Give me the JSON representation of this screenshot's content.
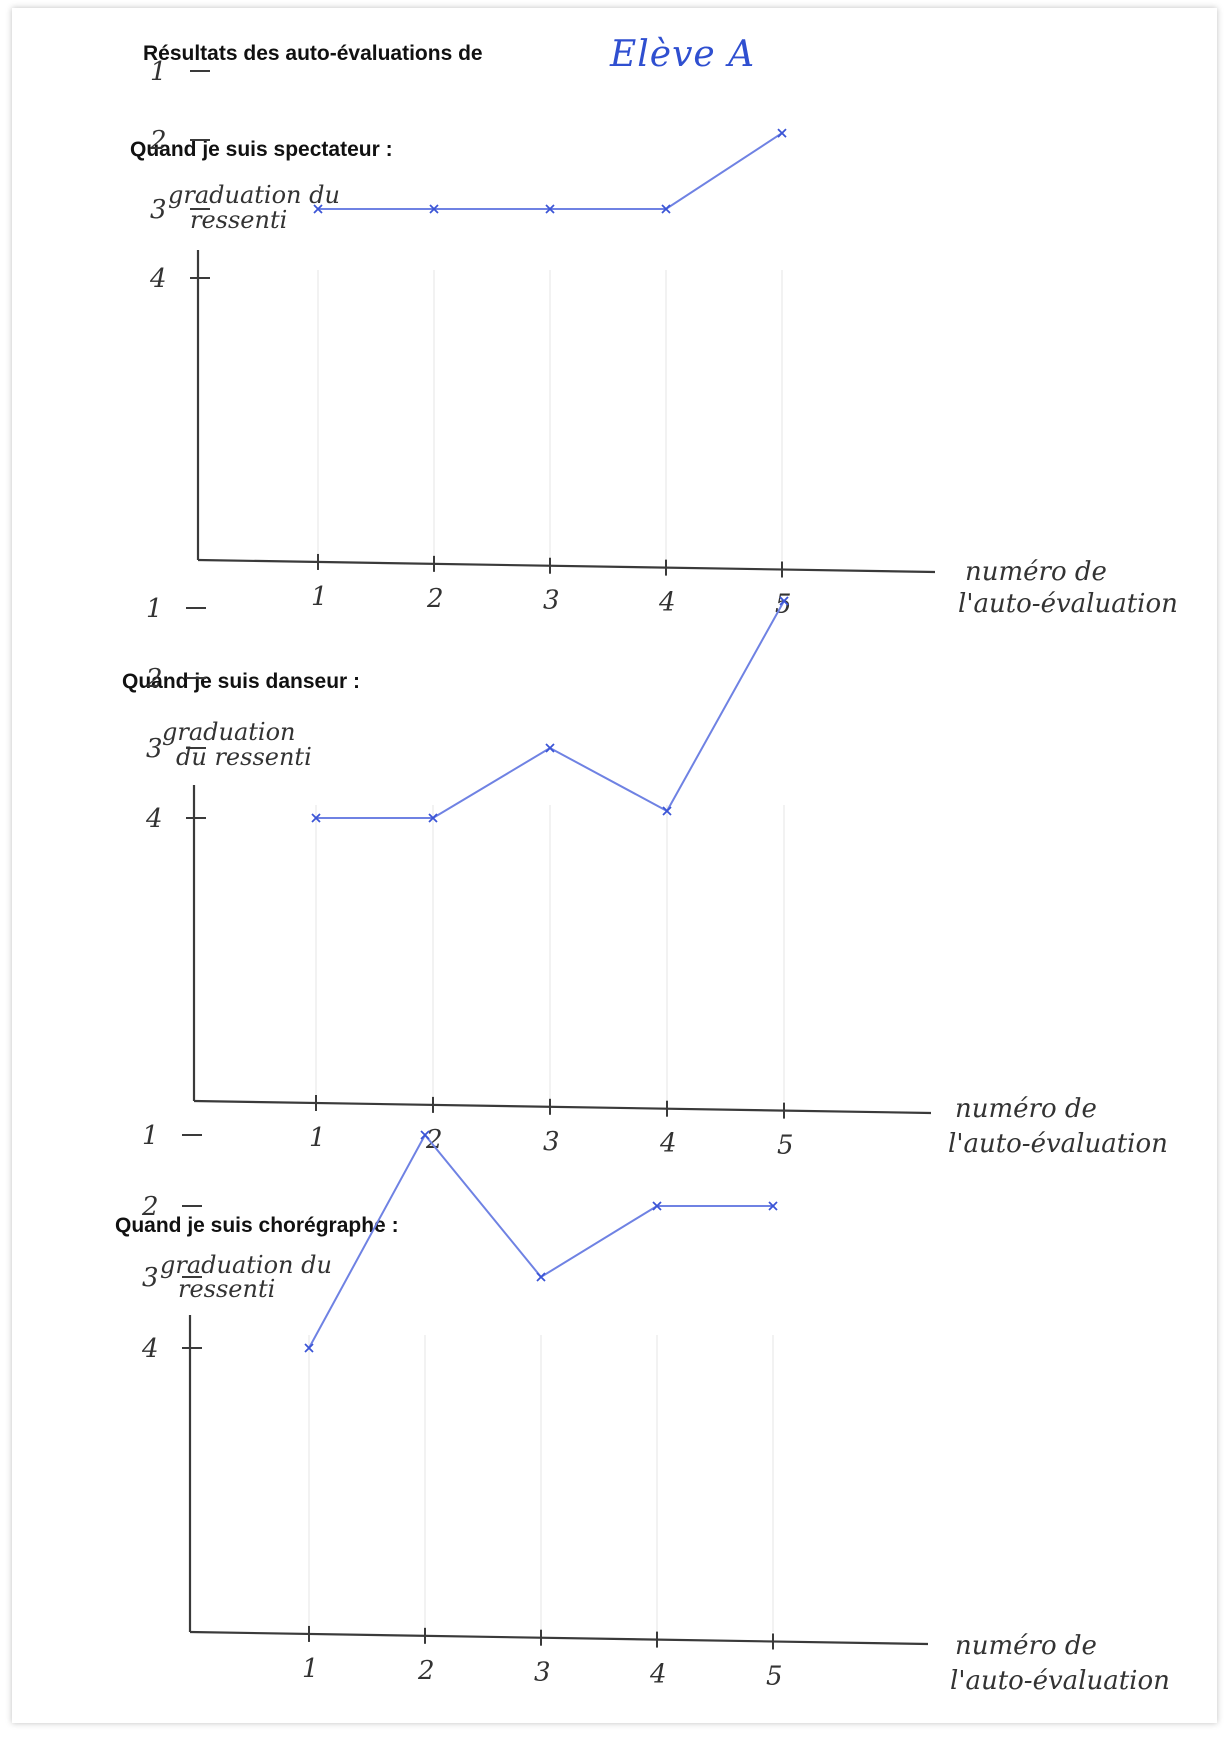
{
  "header": {
    "title": "Résultats des auto-évaluations de",
    "student_name": "Elève A"
  },
  "chart_data": [
    {
      "type": "line",
      "title": "Quand je suis spectateur :",
      "ylabel": "graduation du ressenti",
      "xlabel": "numéro de l'auto-évaluation",
      "x": [
        1,
        2,
        3,
        4,
        5
      ],
      "x_tick_labels": [
        "1",
        "2",
        "3",
        "4",
        "5"
      ],
      "y_ticks": [
        1,
        2,
        3,
        4
      ],
      "y_tick_labels": [
        "1",
        "2",
        "3",
        "4"
      ],
      "series": [
        {
          "values": [
            3,
            3,
            3,
            3,
            1.9
          ]
        }
      ],
      "ylim": [
        0,
        4.5
      ],
      "grid": false,
      "line_color": "#6f82e3"
    },
    {
      "type": "line",
      "title": "Quand je suis danseur :",
      "ylabel": "graduation du ressenti",
      "xlabel": "numéro de l'auto-évaluation",
      "x": [
        1,
        2,
        3,
        4,
        5
      ],
      "x_tick_labels": [
        "1",
        "2",
        "3",
        "4",
        "5"
      ],
      "y_ticks": [
        1,
        2,
        3,
        4
      ],
      "y_tick_labels": [
        "1",
        "2",
        "3",
        "4"
      ],
      "series": [
        {
          "values": [
            4,
            4,
            3,
            3.9,
            0.9
          ]
        }
      ],
      "ylim": [
        0,
        4.5
      ],
      "grid": false,
      "line_color": "#6f82e3"
    },
    {
      "type": "line",
      "title": "Quand je suis chorégraphe :",
      "ylabel": "graduation du ressenti",
      "xlabel": "numéro de l'auto-évaluation",
      "x": [
        1,
        2,
        3,
        4,
        5
      ],
      "x_tick_labels": [
        "1",
        "2",
        "3",
        "4",
        "5"
      ],
      "y_ticks": [
        1,
        2,
        3,
        4
      ],
      "y_tick_labels": [
        "1",
        "2",
        "3",
        "4"
      ],
      "series": [
        {
          "values": [
            4,
            1,
            3,
            2,
            2
          ]
        }
      ],
      "ylim": [
        0,
        4.5
      ],
      "grid": false,
      "line_color": "#6f82e3"
    }
  ]
}
